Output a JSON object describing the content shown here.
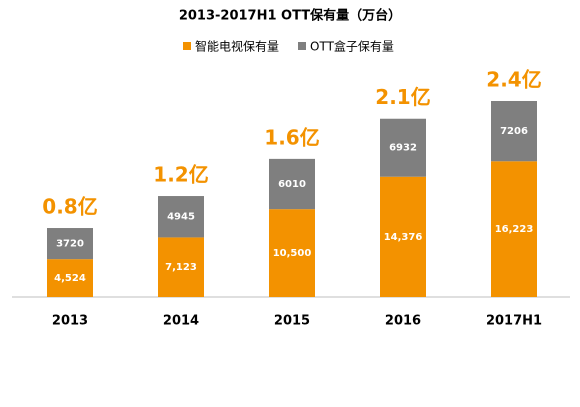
{
  "chart_data": {
    "type": "stacked_bar",
    "title": "2013-2017H1 OTT保有量（万台）",
    "categories": [
      "2013",
      "2014",
      "2015",
      "2016",
      "2017H1"
    ],
    "series": [
      {
        "name": "智能电视保有量",
        "color": "#f39200",
        "values": [
          4524,
          7123,
          10500,
          14376,
          16223
        ],
        "value_labels": [
          "4,524",
          "7,123",
          "10,500",
          "14,376",
          "16,223"
        ]
      },
      {
        "name": "OTT盒子保有量",
        "color": "#7f7f7f",
        "values": [
          3720,
          4945,
          6010,
          6932,
          7206
        ]
      }
    ],
    "annotations": [
      "0.8亿",
      "1.2亿",
      "1.6亿",
      "2.1亿",
      "2.4亿"
    ],
    "annotation_color": "#f39200"
  }
}
